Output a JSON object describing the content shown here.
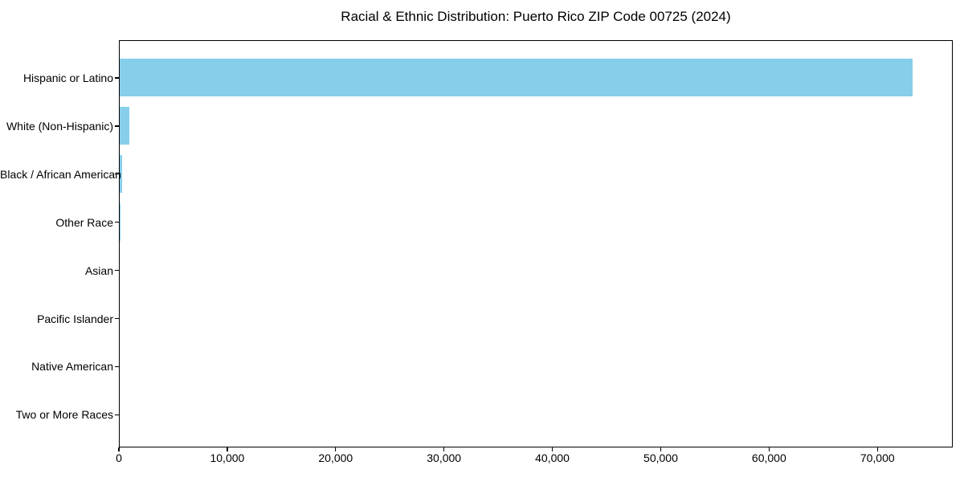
{
  "figure": {
    "background": "#ffffff",
    "text_color": "#000000"
  },
  "chart_data": {
    "type": "bar",
    "orientation": "horizontal",
    "title": "Racial & Ethnic Distribution: Puerto Rico ZIP Code 00725 (2024)",
    "xlabel": "",
    "ylabel": "",
    "categories": [
      "Hispanic or Latino",
      "White (Non-Hispanic)",
      "Black / African American",
      "Other Race",
      "Asian",
      "Pacific Islander",
      "Native American",
      "Two or More Races"
    ],
    "values": [
      73200,
      920,
      250,
      75,
      0,
      0,
      0,
      0
    ],
    "xlim": [
      0,
      76950
    ],
    "xticks": [
      0,
      10000,
      20000,
      30000,
      40000,
      50000,
      60000,
      70000
    ],
    "xtick_labels": [
      "0",
      "10,000",
      "20,000",
      "30,000",
      "40,000",
      "50,000",
      "60,000",
      "70,000"
    ],
    "bar_color": "#87CEEB",
    "grid": false,
    "legend": null
  }
}
